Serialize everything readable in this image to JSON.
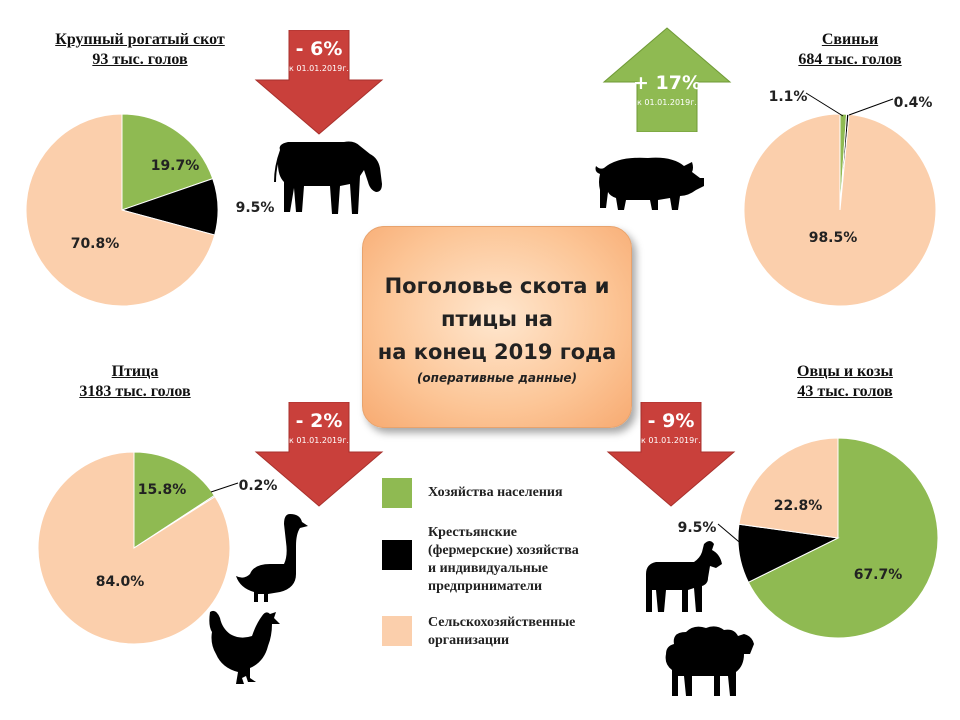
{
  "center": {
    "title": "Поголовье скота и\nптицы на\nна конец 2019 года",
    "subtitle": "(оперативные данные)"
  },
  "colors": {
    "households": "#8fba52",
    "farmers": "#000000",
    "agri_orgs": "#fbcfac",
    "arrow_down": "#c9403b",
    "arrow_up": "#8fba52"
  },
  "legend": [
    {
      "key": "households",
      "label": "Хозяйства населения"
    },
    {
      "key": "farmers",
      "label": "Крестьянские\n(фермерские) хозяйства\nи индивидуальные\nпредприниматели"
    },
    {
      "key": "agri_orgs",
      "label": "Сельскохозяйственные\nорганизации"
    }
  ],
  "chart_data": [
    {
      "type": "pie",
      "title": "Крупный рогатый скот",
      "subtitle": "93  тыс. голов",
      "series": [
        {
          "key": "households",
          "value": 19.7,
          "label": "19.7%"
        },
        {
          "key": "farmers",
          "value": 9.5,
          "label": "9.5%"
        },
        {
          "key": "agri_orgs",
          "value": 70.8,
          "label": "70.8%"
        }
      ],
      "change": {
        "direction": "down",
        "text": "- 6%",
        "reference": "к 01.01.2019г."
      }
    },
    {
      "type": "pie",
      "title": "Свиньи",
      "subtitle": "684 тыс. голов",
      "series": [
        {
          "key": "households",
          "value": 1.1,
          "label": "1.1%"
        },
        {
          "key": "farmers",
          "value": 0.4,
          "label": "0.4%"
        },
        {
          "key": "agri_orgs",
          "value": 98.5,
          "label": "98.5%"
        }
      ],
      "change": {
        "direction": "up",
        "text": "+ 17%",
        "reference": "к 01.01.2019г."
      }
    },
    {
      "type": "pie",
      "title": "Птица",
      "subtitle": "3183 тыс. голов",
      "series": [
        {
          "key": "households",
          "value": 15.8,
          "label": "15.8%"
        },
        {
          "key": "farmers",
          "value": 0.2,
          "label": "0.2%"
        },
        {
          "key": "agri_orgs",
          "value": 84.0,
          "label": "84.0%"
        }
      ],
      "change": {
        "direction": "down",
        "text": "- 2%",
        "reference": "к 01.01.2019г."
      }
    },
    {
      "type": "pie",
      "title": "Овцы и козы",
      "subtitle": "43 тыс. голов",
      "series": [
        {
          "key": "households",
          "value": 67.7,
          "label": "67.7%"
        },
        {
          "key": "farmers",
          "value": 9.5,
          "label": "9.5%"
        },
        {
          "key": "agri_orgs",
          "value": 22.8,
          "label": "22.8%"
        }
      ],
      "change": {
        "direction": "down",
        "text": "- 9%",
        "reference": "к 01.01.2019г."
      }
    }
  ]
}
